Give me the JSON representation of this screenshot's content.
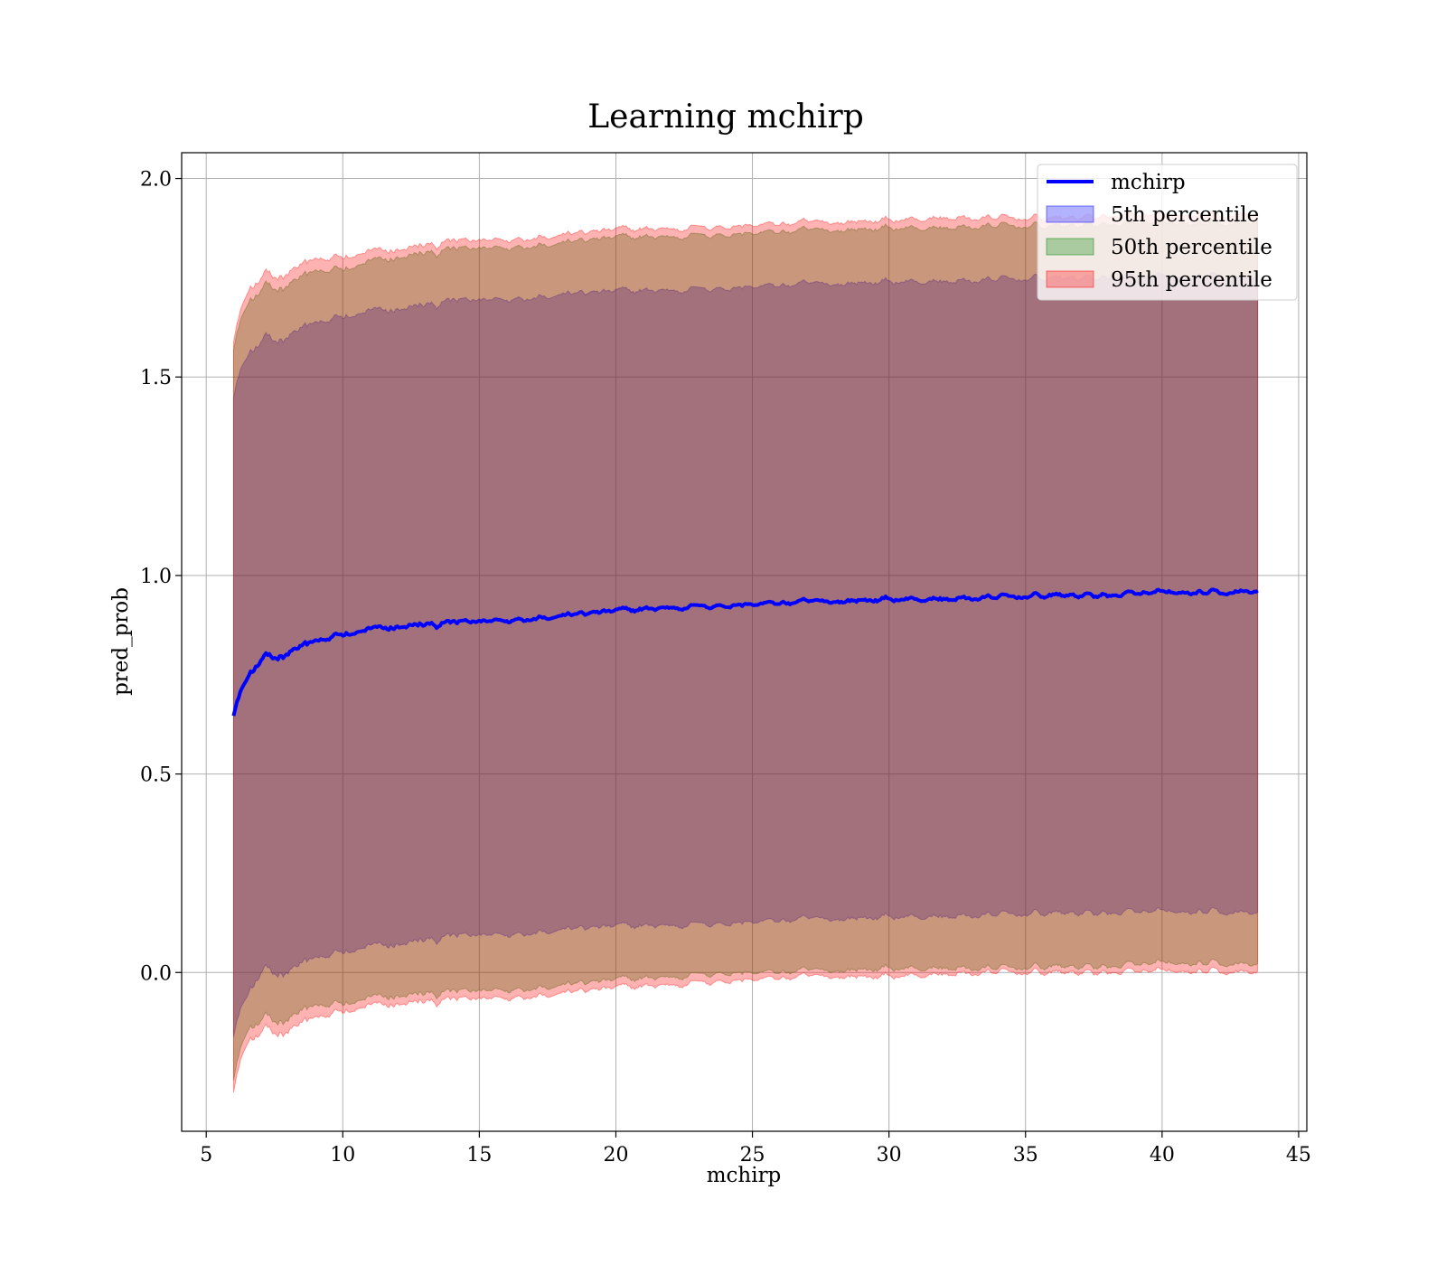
{
  "chart_data": {
    "type": "area",
    "title": "Learning mchirp",
    "xlabel": "mchirp",
    "ylabel": "pred_prob",
    "xlim": [
      4.1,
      45.3
    ],
    "ylim": [
      -0.4,
      2.065
    ],
    "xticks": [
      5,
      10,
      15,
      20,
      25,
      30,
      35,
      40,
      45
    ],
    "yticks": [
      0.0,
      0.5,
      1.0,
      1.5,
      2.0
    ],
    "grid": true,
    "legend_position": "top-right",
    "x": [
      6.0,
      6.5,
      7.0,
      8.0,
      9.0,
      10.0,
      12.0,
      14.0,
      16.0,
      18.0,
      20.0,
      22.0,
      24.0,
      26.0,
      28.0,
      30.0,
      32.0,
      34.0,
      36.0,
      38.0,
      40.0,
      42.0,
      43.5
    ],
    "series": [
      {
        "name": "mchirp",
        "kind": "line",
        "color": "#0000ff",
        "values": [
          0.67,
          0.74,
          0.78,
          0.81,
          0.83,
          0.85,
          0.87,
          0.88,
          0.89,
          0.9,
          0.91,
          0.92,
          0.925,
          0.93,
          0.935,
          0.94,
          0.94,
          0.945,
          0.95,
          0.95,
          0.955,
          0.955,
          0.96
        ]
      },
      {
        "name": "5th percentile",
        "kind": "band",
        "color": "#0000ff",
        "lower": [
          -0.13,
          -0.06,
          -0.01,
          0.01,
          0.03,
          0.05,
          0.07,
          0.09,
          0.1,
          0.11,
          0.115,
          0.12,
          0.125,
          0.13,
          0.135,
          0.14,
          0.14,
          0.145,
          0.15,
          0.15,
          0.15,
          0.15,
          0.15
        ],
        "upper": [
          1.48,
          1.55,
          1.58,
          1.61,
          1.63,
          1.65,
          1.67,
          1.69,
          1.7,
          1.71,
          1.715,
          1.72,
          1.725,
          1.73,
          1.735,
          1.74,
          1.74,
          1.745,
          1.75,
          1.75,
          1.75,
          1.75,
          1.75
        ]
      },
      {
        "name": "50th percentile",
        "kind": "band",
        "color": "#008000",
        "lower": [
          -0.24,
          -0.15,
          -0.13,
          -0.11,
          -0.09,
          -0.08,
          -0.06,
          -0.05,
          -0.04,
          -0.03,
          -0.02,
          -0.01,
          0.0,
          0.0,
          0.005,
          0.01,
          0.01,
          0.01,
          0.015,
          0.015,
          0.02,
          0.02,
          0.02
        ],
        "upper": [
          1.6,
          1.68,
          1.71,
          1.74,
          1.76,
          1.77,
          1.8,
          1.82,
          1.83,
          1.84,
          1.85,
          1.855,
          1.86,
          1.865,
          1.87,
          1.875,
          1.875,
          1.88,
          1.88,
          1.885,
          1.885,
          1.885,
          1.89
        ]
      },
      {
        "name": "95th percentile",
        "kind": "band",
        "color": "#ff0000",
        "lower": [
          -0.27,
          -0.18,
          -0.16,
          -0.14,
          -0.12,
          -0.1,
          -0.08,
          -0.07,
          -0.06,
          -0.05,
          -0.04,
          -0.03,
          -0.02,
          -0.015,
          -0.01,
          -0.01,
          -0.005,
          0.0,
          0.0,
          0.0,
          0.0,
          0.0,
          0.0
        ],
        "upper": [
          1.62,
          1.71,
          1.74,
          1.77,
          1.79,
          1.8,
          1.82,
          1.84,
          1.85,
          1.86,
          1.87,
          1.875,
          1.88,
          1.885,
          1.89,
          1.895,
          1.9,
          1.9,
          1.9,
          1.905,
          1.905,
          1.905,
          1.91
        ]
      }
    ]
  }
}
